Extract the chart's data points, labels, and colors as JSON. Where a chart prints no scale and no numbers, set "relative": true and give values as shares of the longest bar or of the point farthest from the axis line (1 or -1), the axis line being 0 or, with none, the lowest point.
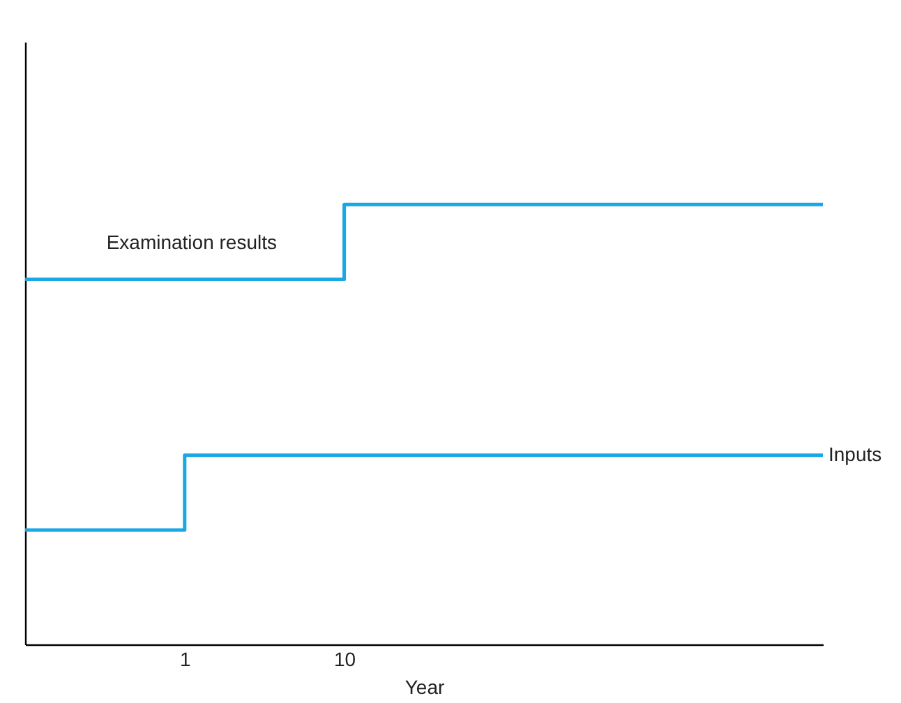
{
  "chart_data": {
    "type": "step",
    "relative": true,
    "xlabel": "Year",
    "categories": [
      null,
      "1",
      "10",
      null,
      null,
      null
    ],
    "series": [
      {
        "name": "Examination results",
        "color": "#1aa7e4",
        "values": [
          0.83,
          0.83,
          1,
          1,
          1,
          1
        ]
      },
      {
        "name": "Inputs",
        "color": "#1aa7e4",
        "values": [
          0.26,
          0.43,
          0.43,
          0.43,
          0.43,
          0.43
        ]
      }
    ]
  }
}
